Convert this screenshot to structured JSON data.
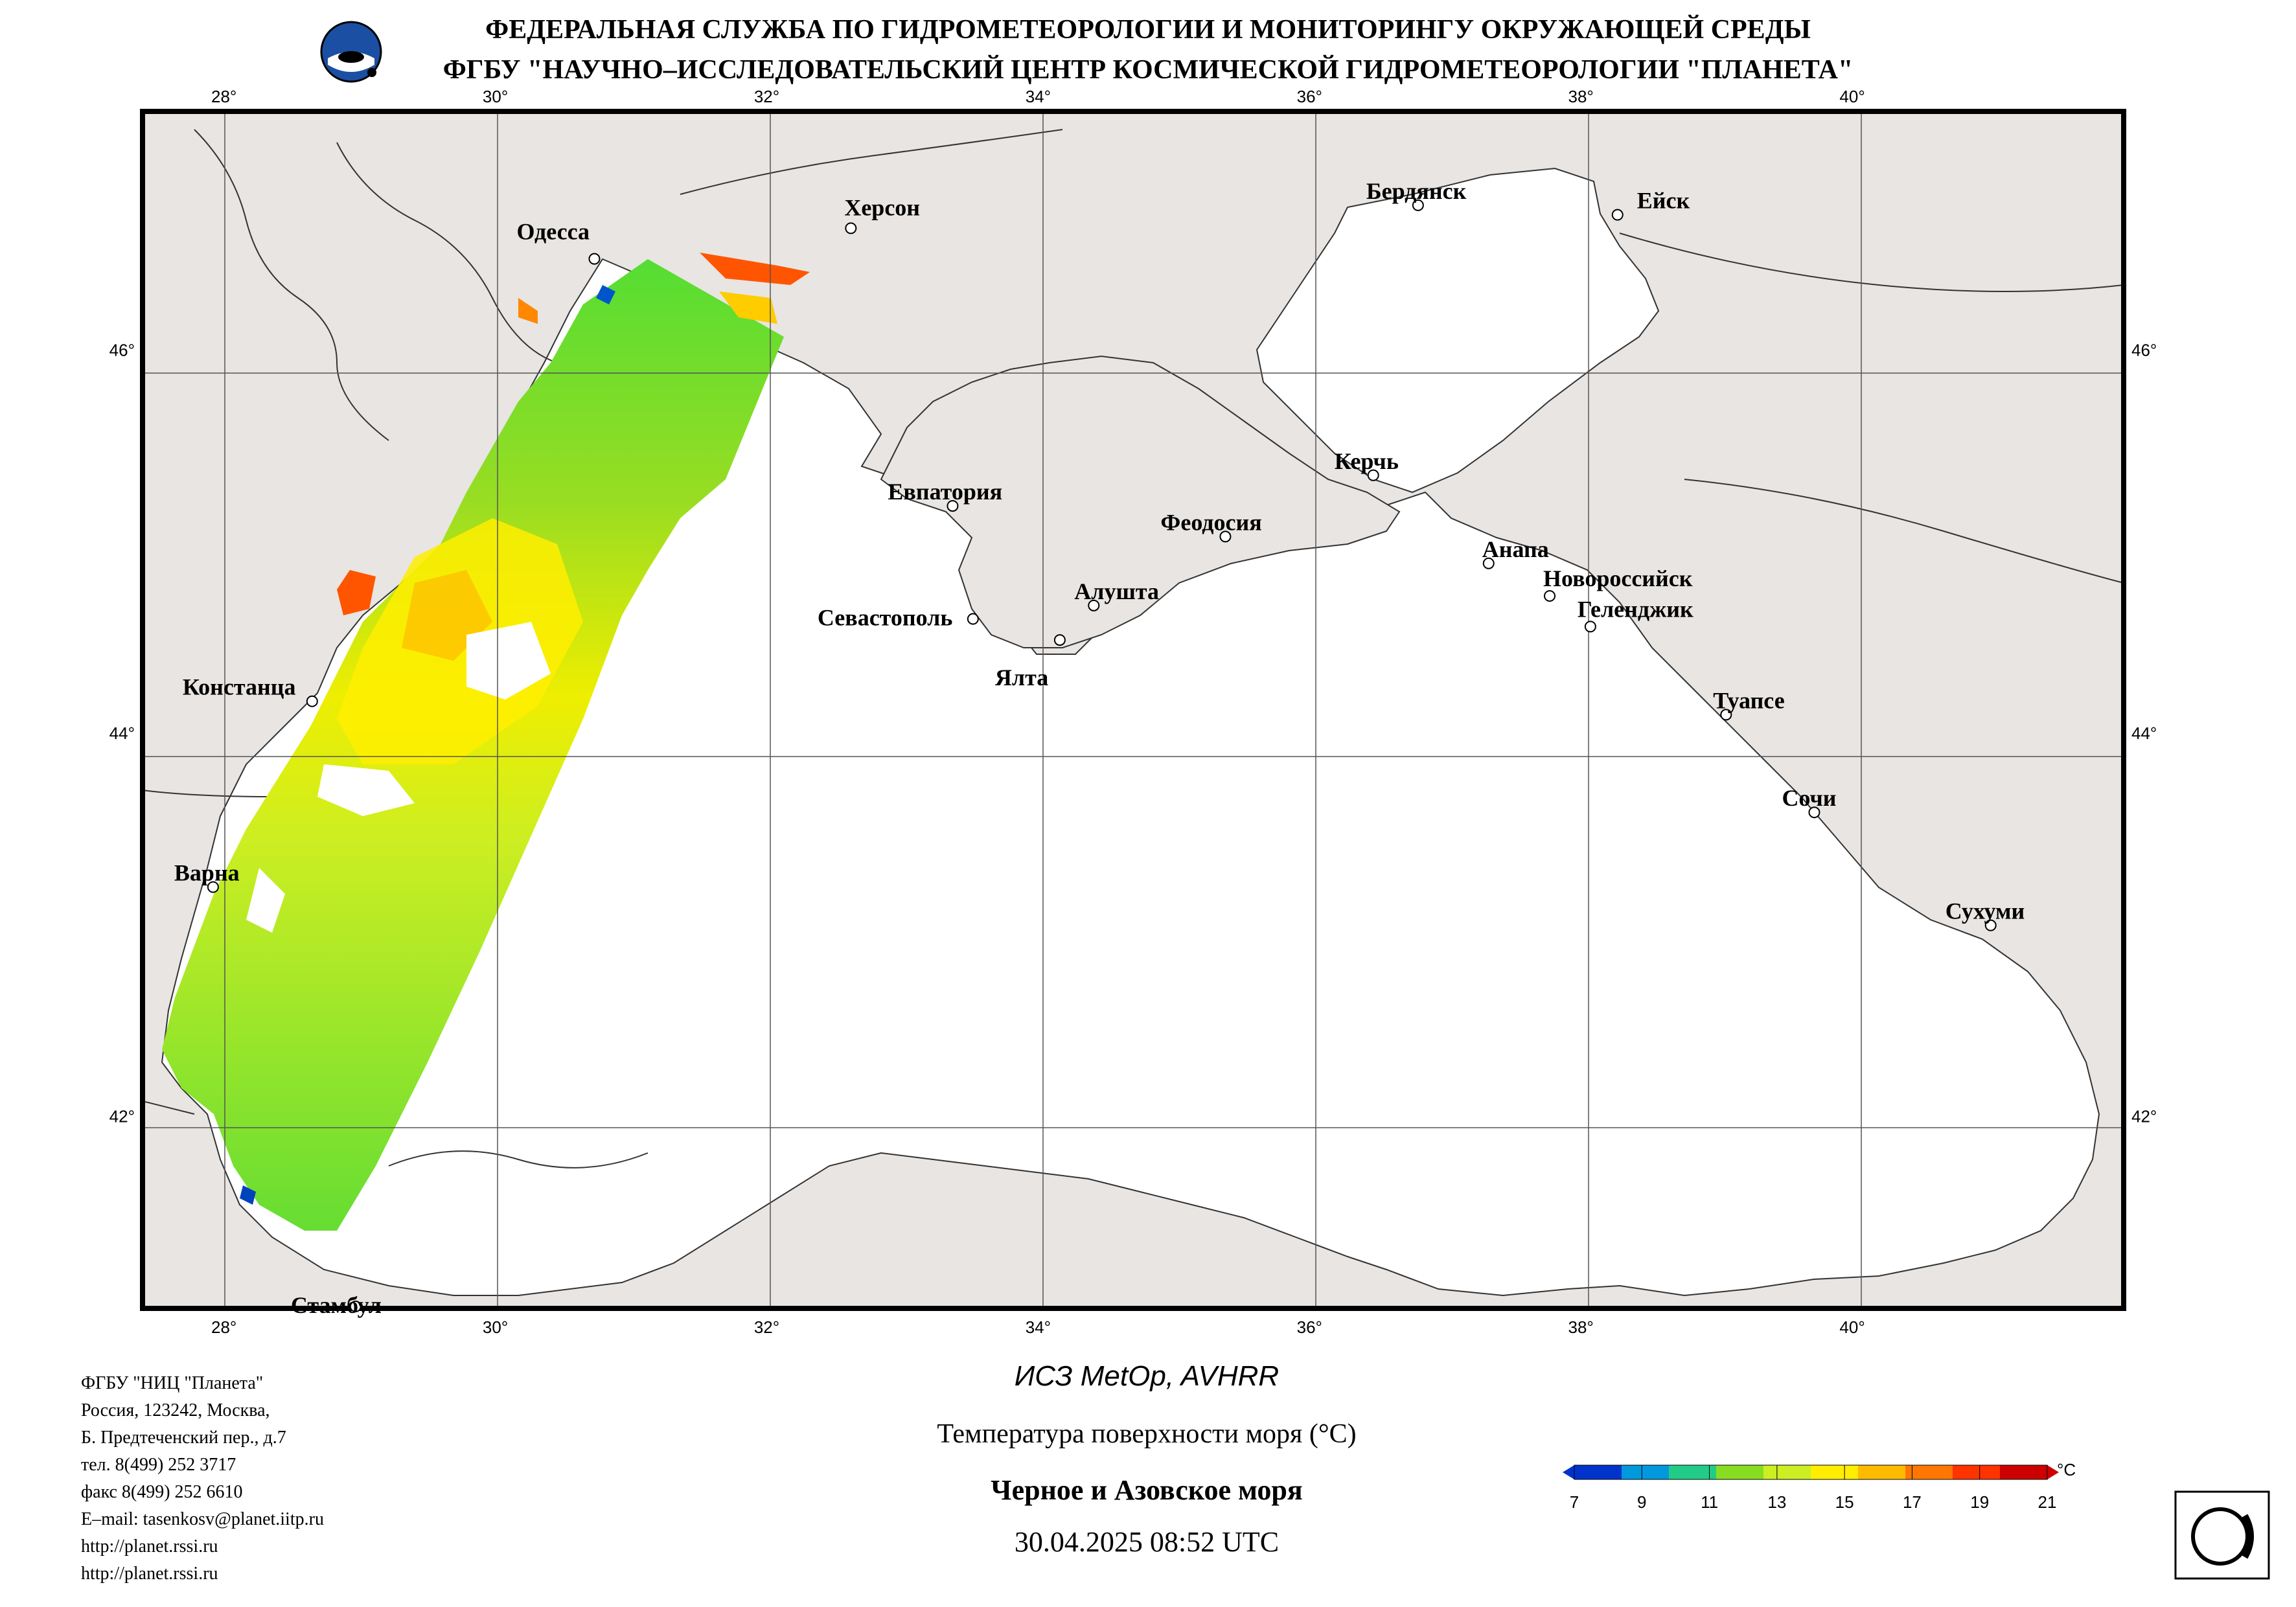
{
  "header": {
    "line1": "ФЕДЕРАЛЬНАЯ СЛУЖБА ПО ГИДРОМЕТЕОРОЛОГИИ И МОНИТОРИНГУ ОКРУЖАЮЩЕЙ СРЕДЫ",
    "line2": "ФГБУ \"НАУЧНО–ИССЛЕДОВАТЕЛЬСКИЙ ЦЕНТР КОСМИЧЕСКОЙ ГИДРОМЕТЕОРОЛОГИИ \"ПЛАНЕТА\""
  },
  "map": {
    "lon_ticks": [
      "28°",
      "30°",
      "32°",
      "34°",
      "36°",
      "38°",
      "40°"
    ],
    "lat_ticks": [
      "46°",
      "44°",
      "42°"
    ],
    "lon_range": [
      27.4,
      42.0
    ],
    "lat_range": [
      41.0,
      47.25
    ],
    "cities": [
      {
        "name": "Одесса",
        "lon": 30.73,
        "lat": 46.48
      },
      {
        "name": "Херсон",
        "lon": 32.62,
        "lat": 46.64
      },
      {
        "name": "Бердянск",
        "lon": 36.8,
        "lat": 46.76
      },
      {
        "name": "Ейск",
        "lon": 38.27,
        "lat": 46.71
      },
      {
        "name": "Евпатория",
        "lon": 33.37,
        "lat": 45.19
      },
      {
        "name": "Керчь",
        "lon": 36.47,
        "lat": 45.35
      },
      {
        "name": "Феодосия",
        "lon": 35.38,
        "lat": 45.03
      },
      {
        "name": "Анапа",
        "lon": 37.32,
        "lat": 44.89
      },
      {
        "name": "Новороссийск",
        "lon": 37.77,
        "lat": 44.72
      },
      {
        "name": "Геленджик",
        "lon": 38.07,
        "lat": 44.56
      },
      {
        "name": "Алушта",
        "lon": 34.41,
        "lat": 44.67
      },
      {
        "name": "Севастополь",
        "lon": 33.52,
        "lat": 44.6
      },
      {
        "name": "Ялта",
        "lon": 34.16,
        "lat": 44.49
      },
      {
        "name": "Констанца",
        "lon": 28.65,
        "lat": 44.17
      },
      {
        "name": "Туапсе",
        "lon": 39.07,
        "lat": 44.1
      },
      {
        "name": "Сочи",
        "lon": 39.72,
        "lat": 43.59
      },
      {
        "name": "Варна",
        "lon": 27.92,
        "lat": 43.2
      },
      {
        "name": "Сухуми",
        "lon": 41.02,
        "lat": 43.0
      },
      {
        "name": "Стамбул",
        "lon": 28.97,
        "lat": 41.01
      }
    ]
  },
  "footer_info": [
    "ФГБУ \"НИЦ \"Планета\"",
    "Россия, 123242, Москва,",
    "Б. Предтеченский пер., д.7",
    "тел. 8(499) 252 3717",
    "факс 8(499) 252 6610",
    "E–mail: tasenkosv@planet.iitp.ru",
    "http://planet.rssi.ru",
    "http://planet.rssi.ru"
  ],
  "product": {
    "satellite": "ИСЗ MetOp, AVHRR",
    "parameter": "Температура поверхности моря (°С)",
    "region": "Черное и Азовское моря",
    "datetime": "30.04.2025 08:52 UTC"
  },
  "legend": {
    "unit": "°С",
    "ticks": [
      "7",
      "9",
      "11",
      "13",
      "15",
      "17",
      "19",
      "21"
    ],
    "colors": [
      "#0033cc",
      "#0099dd",
      "#22cc88",
      "#88dd22",
      "#ccee22",
      "#ffee00",
      "#ffbb00",
      "#ff7700",
      "#ff3300",
      "#cc0000"
    ]
  },
  "colors": {
    "land": "#e8e5e2",
    "sea": "#ffffff",
    "grid": "#555555"
  }
}
